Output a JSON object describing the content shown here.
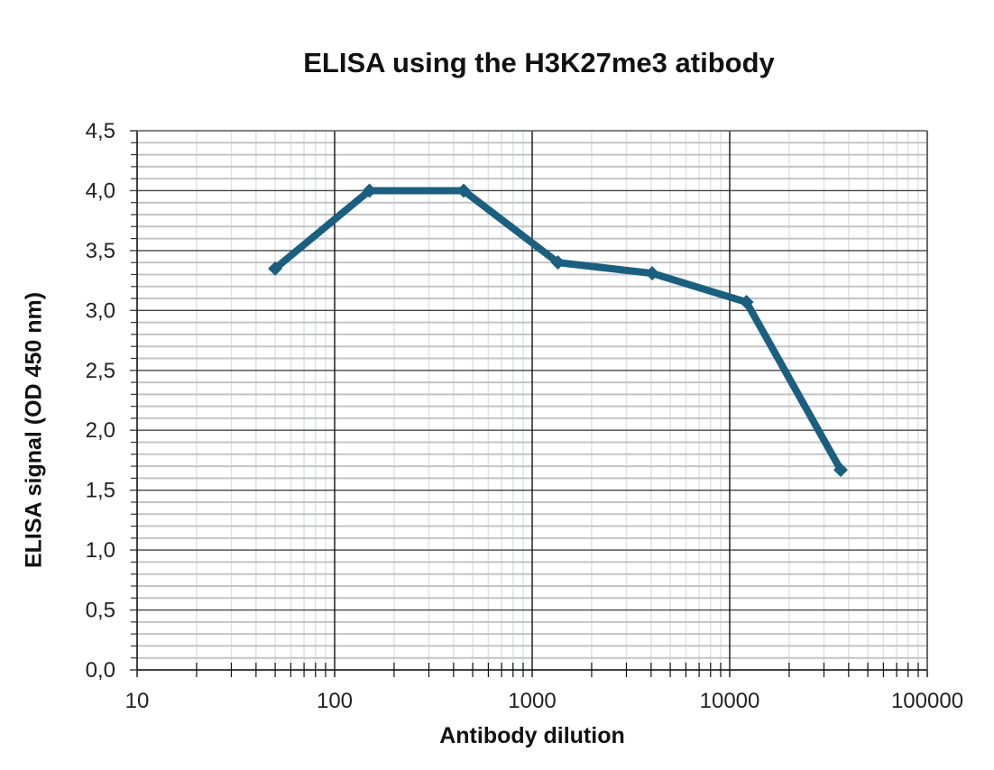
{
  "chart_data": {
    "type": "line",
    "title": "ELISA using the H3K27me3 atibody",
    "xlabel": "Antibody dilution",
    "ylabel": "ELISA signal (OD 450 nm)",
    "x_scale": "log",
    "xlim": [
      10,
      100000
    ],
    "ylim": [
      0,
      4.5
    ],
    "x_tick_labels": [
      "10",
      "100",
      "1000",
      "10000",
      "100000"
    ],
    "y_tick_labels": [
      "0,0",
      "0,5",
      "1,0",
      "1,5",
      "2,0",
      "2,5",
      "3,0",
      "3,5",
      "4,0",
      "4,5"
    ],
    "grid": true,
    "legend": null,
    "series": [
      {
        "name": "H3K27me3",
        "color": "#1b5f80",
        "marker": "diamond",
        "x": [
          50,
          150,
          450,
          1350,
          4050,
          12150,
          36450
        ],
        "y": [
          3.35,
          4.0,
          4.0,
          3.4,
          3.31,
          3.07,
          1.67
        ]
      }
    ]
  }
}
